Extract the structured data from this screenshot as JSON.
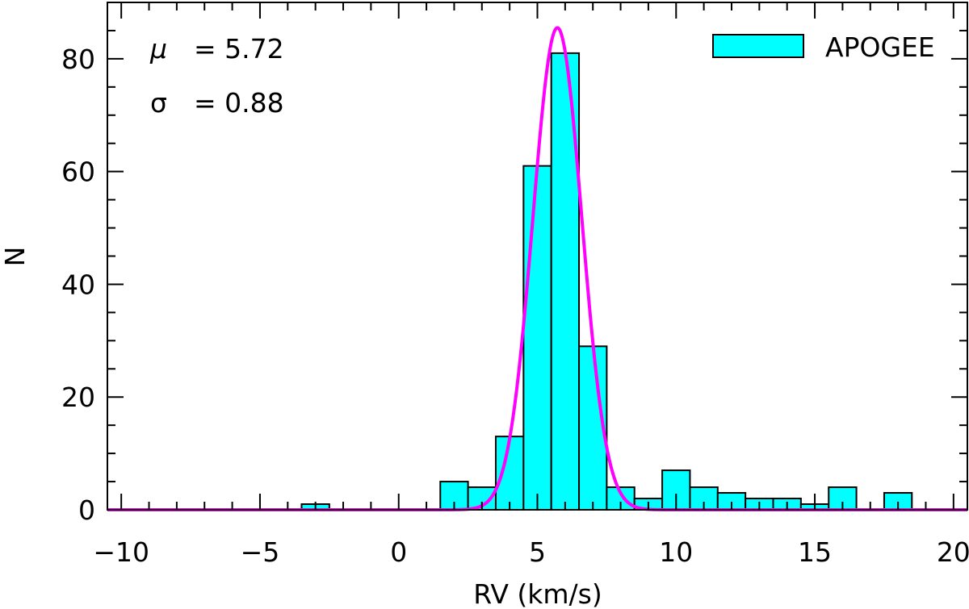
{
  "chart_data": {
    "type": "bar",
    "xlabel": "RV (km/s)",
    "ylabel": "N",
    "xlim": [
      -10.5,
      20.5
    ],
    "ylim": [
      0,
      90
    ],
    "xticks": [
      -10,
      -5,
      0,
      5,
      10,
      15,
      20
    ],
    "xtick_labels": [
      "−10",
      "−5",
      "0",
      "5",
      "10",
      "15",
      "20"
    ],
    "yticks": [
      0,
      20,
      40,
      60,
      80
    ],
    "ytick_labels": [
      "0",
      "20",
      "40",
      "60",
      "80"
    ],
    "bin_width": 1,
    "bin_edges_start": -10.5,
    "counts": [
      0,
      0,
      0,
      0,
      0,
      0,
      0,
      1,
      0,
      0,
      0,
      0,
      5,
      4,
      13,
      61,
      81,
      29,
      4,
      2,
      7,
      4,
      3,
      2,
      2,
      1,
      4,
      0,
      3,
      0,
      0
    ],
    "series": [
      {
        "name": "APOGEE",
        "kind": "histogram",
        "color": "#00ffff"
      },
      {
        "name": "",
        "kind": "gaussian-fit",
        "mu": 5.72,
        "sigma": 0.88,
        "amplitude": 85.5,
        "color": "#ff00ff"
      }
    ],
    "legend": {
      "label": "APOGEE",
      "placement": "top-right"
    },
    "annotations": [
      {
        "symbol": "μ",
        "text": "= 5.72"
      },
      {
        "symbol": "σ",
        "text": "= 0.88"
      }
    ],
    "grid": false
  }
}
